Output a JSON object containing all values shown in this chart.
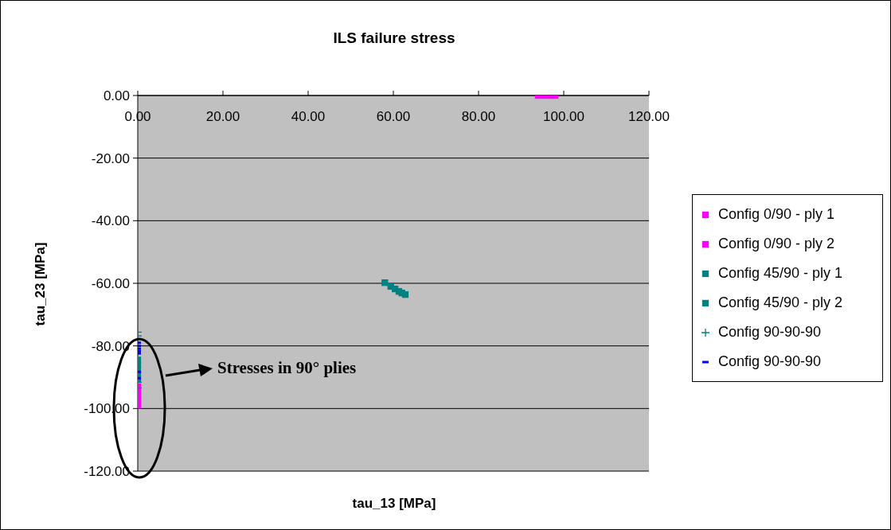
{
  "chart_data": {
    "type": "scatter",
    "title": "ILS failure stress",
    "xlabel": "tau_13 [MPa]",
    "ylabel": "tau_23 [MPa]",
    "annotations": [
      "Stresses in 90° plies"
    ],
    "xlim": [
      0,
      120
    ],
    "ylim": [
      -120,
      0
    ],
    "xticks": [
      {
        "value": 0,
        "label": "0.00"
      },
      {
        "value": 20,
        "label": "20.00"
      },
      {
        "value": 40,
        "label": "40.00"
      },
      {
        "value": 60,
        "label": "60.00"
      },
      {
        "value": 80,
        "label": "80.00"
      },
      {
        "value": 100,
        "label": "100.00"
      },
      {
        "value": 120,
        "label": "120.00"
      }
    ],
    "yticks": [
      {
        "value": 0,
        "label": "0.00"
      },
      {
        "value": -20,
        "label": "-20.00"
      },
      {
        "value": -40,
        "label": "-40.00"
      },
      {
        "value": -60,
        "label": "-60.00"
      },
      {
        "value": -80,
        "label": "-80.00"
      },
      {
        "value": -100,
        "label": "-100.00"
      },
      {
        "value": -120,
        "label": "-120.00"
      }
    ],
    "grid": "y",
    "legend": "right",
    "series": [
      {
        "name": "Config 0/90 - ply 1",
        "color": "#ff00ff",
        "marker": "square",
        "x": [
          94,
          95.5,
          97,
          98
        ],
        "values": [
          0,
          0,
          0,
          0
        ]
      },
      {
        "name": "Config 0/90 - ply 2",
        "color": "#ff00ff",
        "marker": "square",
        "x": [
          0,
          0,
          0,
          0,
          0
        ],
        "values": [
          -93,
          -94.5,
          -96,
          -97.5,
          -99
        ]
      },
      {
        "name": "Config 45/90 - ply 1",
        "color": "#008080",
        "marker": "square",
        "x": [
          58,
          59.4,
          60.4,
          61.3,
          62,
          62.8
        ],
        "values": [
          -59.8,
          -61,
          -61.8,
          -62.6,
          -63.1,
          -63.6
        ]
      },
      {
        "name": "Config 45/90 - ply 2",
        "color": "#008080",
        "marker": "square",
        "x": [
          0,
          0,
          0,
          0,
          0
        ],
        "values": [
          -84.5,
          -86,
          -87.5,
          -89,
          -90.5
        ]
      },
      {
        "name": "Config 90-90-90",
        "color": "#008080",
        "marker": "cross",
        "x": [
          0,
          0,
          0,
          0
        ],
        "values": [
          -75.6,
          -76.8,
          -91.6,
          -93.4
        ]
      },
      {
        "name": "Config 90-90-90",
        "color": "#0000ff",
        "x": [
          0,
          0,
          0,
          0,
          0,
          0,
          0
        ],
        "values": [
          -79,
          -80,
          -80.9,
          -81.7,
          -82.4,
          -88.3,
          -90.3
        ]
      }
    ]
  }
}
